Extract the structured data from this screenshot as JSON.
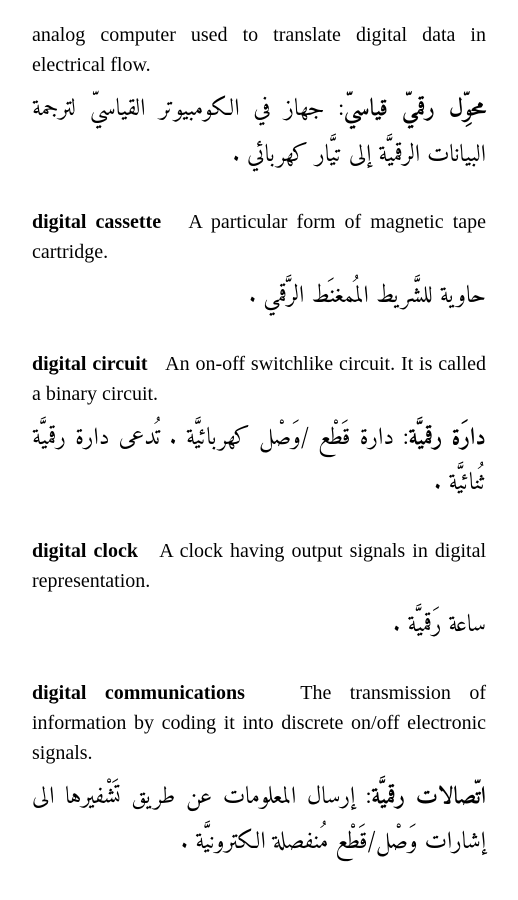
{
  "entries": [
    {
      "term": "",
      "definition_prefix": "analog computer used to translate digital data in electrical flow.",
      "arabic_term": "محوِّل رقميّ قياسيّ",
      "arabic_def": ": جهاز في الكومبيوتر القياسيّ لترجمة البيانات الرقميَّة إلى تيَّار كهربائي .",
      "arabic_justify": true
    },
    {
      "term": "digital cassette",
      "definition_prefix": "A particular form of magnetic tape cartridge.",
      "arabic_term": "",
      "arabic_def": "حاوية للشَّريط المُمغنَط الرَّقمي .",
      "arabic_justify": false
    },
    {
      "term": "digital circuit",
      "definition_prefix": "An on-off switchlike circuit. It is called a binary circuit.",
      "arabic_term": "دارَة رقميَّة",
      "arabic_def": ": دارة قَطْع /وَصْل كهربائيَّة . تُدعى دارة رقميَّة ثُنائيَّة .",
      "arabic_justify": true
    },
    {
      "term": "digital clock",
      "definition_prefix": "A clock having output signals in digital representation.",
      "arabic_term": "",
      "arabic_def": "ساعة رَقميَّة .",
      "arabic_justify": false
    },
    {
      "term": "digital communications",
      "definition_prefix": "The transmission of information by coding it into discrete on/off electronic signals.",
      "arabic_term": "اتّصالات رقميَّة",
      "arabic_def": ": إرسال المعلومات عن طريق تَشْفيرها الى إشارات وَصْل/قَطْع مُنفصلة الكترونيَّة .",
      "arabic_justify": true
    }
  ]
}
